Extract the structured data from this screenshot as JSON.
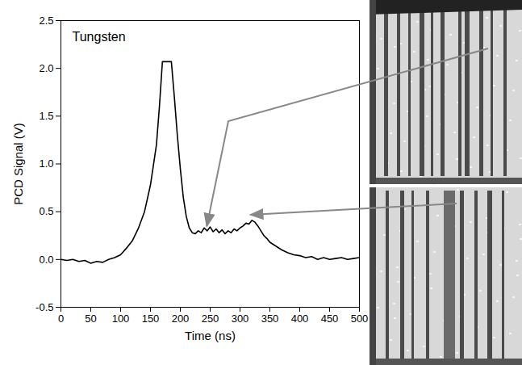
{
  "chart_data": {
    "type": "line",
    "title": "Tungsten",
    "x_label": "Time (ns)",
    "y_label": "PCD Signal (V)",
    "x": [
      0,
      10,
      20,
      30,
      40,
      50,
      60,
      70,
      80,
      90,
      100,
      110,
      120,
      130,
      140,
      150,
      160,
      165,
      170,
      175,
      180,
      185,
      190,
      195,
      200,
      205,
      210,
      215,
      220,
      225,
      230,
      235,
      240,
      245,
      250,
      255,
      260,
      265,
      270,
      275,
      280,
      285,
      290,
      295,
      300,
      305,
      310,
      315,
      320,
      325,
      330,
      335,
      340,
      345,
      350,
      360,
      370,
      380,
      390,
      400,
      410,
      420,
      430,
      440,
      450,
      460,
      470,
      480,
      490,
      500
    ],
    "values": [
      0.0,
      -0.01,
      0.0,
      -0.02,
      -0.01,
      -0.04,
      -0.02,
      -0.03,
      0.0,
      0.02,
      0.05,
      0.12,
      0.2,
      0.33,
      0.5,
      0.78,
      1.2,
      1.6,
      2.07,
      2.07,
      2.07,
      2.07,
      1.7,
      1.3,
      0.95,
      0.65,
      0.45,
      0.33,
      0.28,
      0.27,
      0.3,
      0.28,
      0.33,
      0.3,
      0.34,
      0.29,
      0.32,
      0.28,
      0.31,
      0.27,
      0.3,
      0.28,
      0.32,
      0.3,
      0.33,
      0.35,
      0.38,
      0.37,
      0.41,
      0.39,
      0.35,
      0.3,
      0.25,
      0.22,
      0.18,
      0.14,
      0.1,
      0.07,
      0.05,
      0.04,
      0.02,
      0.03,
      0.0,
      0.02,
      0.0,
      0.01,
      0.02,
      0.0,
      0.01,
      0.02
    ],
    "color": "#000000",
    "xlim": [
      0,
      500
    ],
    "xticks": [
      0,
      50,
      100,
      150,
      200,
      250,
      300,
      350,
      400,
      450,
      500
    ],
    "ylim": [
      -0.5,
      2.5
    ],
    "yticks": [
      -0.5,
      {
        "value": 0,
        "label": "0.0"
      },
      0.5,
      {
        "value": 1,
        "label": "1.0"
      },
      1.5,
      {
        "value": 2,
        "label": "2.0"
      },
      2.5
    ],
    "annotations": [
      {
        "x": 245,
        "y": 0.31
      },
      {
        "x": 318,
        "y": 0.43
      }
    ],
    "grid": false
  }
}
